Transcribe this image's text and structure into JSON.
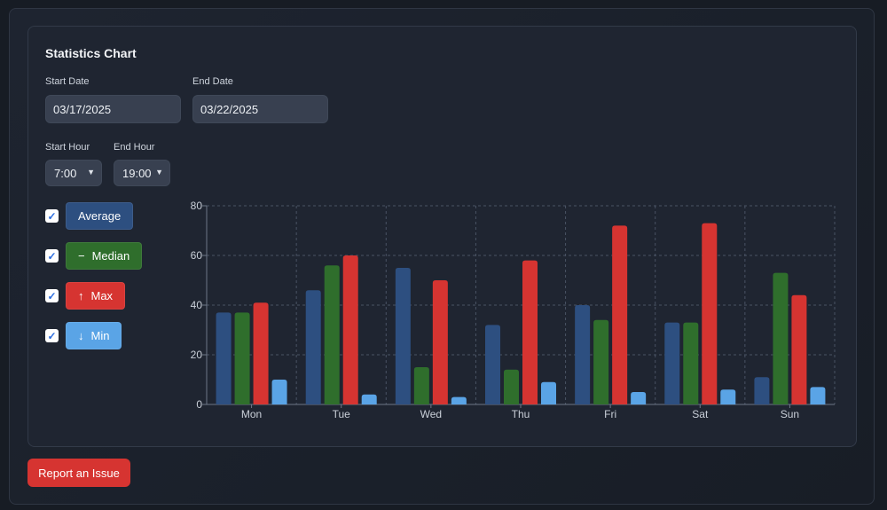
{
  "card": {
    "title": "Statistics Chart"
  },
  "filters": {
    "start_date_label": "Start Date",
    "start_date": "03/17/2025",
    "end_date_label": "End Date",
    "end_date": "03/22/2025",
    "start_hour_label": "Start Hour",
    "start_hour": "7:00",
    "end_hour_label": "End Hour",
    "end_hour": "19:00"
  },
  "toggles": [
    {
      "label": "Average",
      "icon": "",
      "checked": true,
      "color": "#2d4f80"
    },
    {
      "label": "Median",
      "icon": "−",
      "checked": true,
      "color": "#2f6e2c"
    },
    {
      "label": "Max",
      "icon": "↑",
      "checked": true,
      "color": "#d63431"
    },
    {
      "label": "Min",
      "icon": "↓",
      "checked": true,
      "color": "#5aa4e6"
    }
  ],
  "report_button": "Report an Issue",
  "chart_data": {
    "type": "bar",
    "categories": [
      "Mon",
      "Tue",
      "Wed",
      "Thu",
      "Fri",
      "Sat",
      "Sun"
    ],
    "series": [
      {
        "values": [
          37,
          46,
          55,
          32,
          40,
          33,
          11
        ],
        "color": "#2d4f80"
      },
      {
        "values": [
          37,
          56,
          15,
          14,
          34,
          33,
          53
        ],
        "color": "#2f6e2c"
      },
      {
        "values": [
          41,
          60,
          50,
          58,
          72,
          73,
          44
        ],
        "color": "#d63431"
      },
      {
        "values": [
          10,
          4,
          3,
          9,
          5,
          6,
          7
        ],
        "color": "#5aa4e6"
      }
    ],
    "ylim": [
      0,
      80
    ],
    "yticks": [
      0,
      20,
      40,
      60,
      80
    ],
    "grid": true
  }
}
